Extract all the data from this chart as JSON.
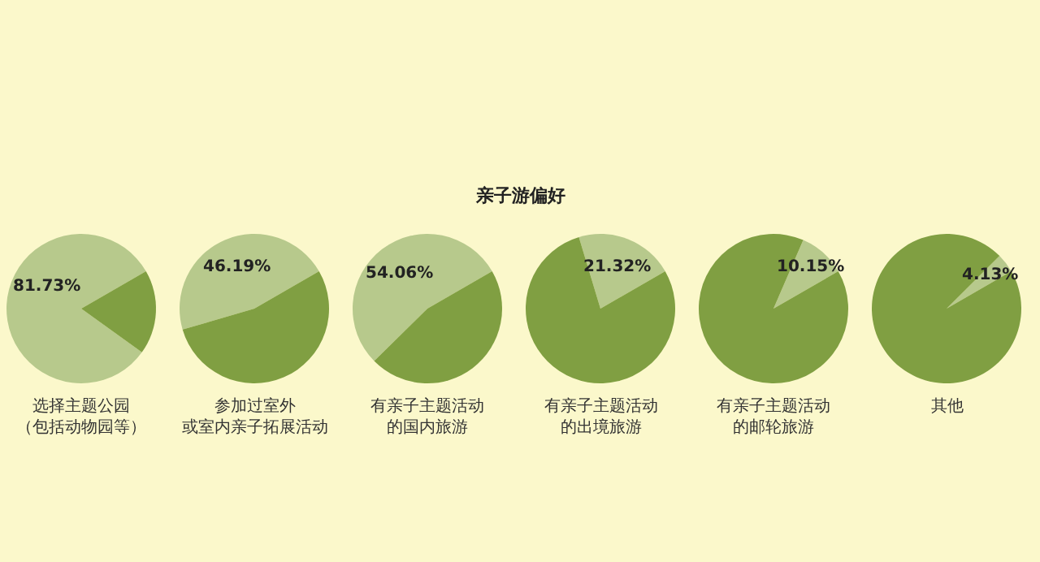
{
  "chart_data": [
    {
      "type": "pie",
      "xlabel": "选择主题公园（包括动物园等）",
      "categories": [
        null,
        null
      ],
      "values": [
        81.73,
        18.27
      ],
      "colors": [
        "#b7c98c",
        "#809f42"
      ],
      "value_labels": [
        "81.73%",
        null
      ]
    },
    {
      "type": "pie",
      "xlabel": "参加过室外或室内亲子拓展活动",
      "categories": [
        null,
        null
      ],
      "values": [
        46.19,
        53.81
      ],
      "colors": [
        "#b7c98c",
        "#809f42"
      ],
      "value_labels": [
        "46.19%",
        null
      ]
    },
    {
      "type": "pie",
      "xlabel": "有亲子主题活动的国内旅游",
      "categories": [
        null,
        null
      ],
      "values": [
        54.06,
        45.94
      ],
      "colors": [
        "#b7c98c",
        "#809f42"
      ],
      "value_labels": [
        "54.06%",
        null
      ]
    },
    {
      "type": "pie",
      "title": "亲子游偏好",
      "xlabel": "有亲子主题活动的出境旅游",
      "categories": [
        null,
        null
      ],
      "values": [
        21.32,
        78.68
      ],
      "colors": [
        "#b7c98c",
        "#809f42"
      ],
      "value_labels": [
        "21.32%",
        null
      ]
    },
    {
      "type": "pie",
      "xlabel": "有亲子主题活动的邮轮旅游",
      "categories": [
        null,
        null
      ],
      "values": [
        10.15,
        89.85
      ],
      "colors": [
        "#b7c98c",
        "#809f42"
      ],
      "value_labels": [
        "10.15%",
        null
      ]
    },
    {
      "type": "pie",
      "xlabel": "其他",
      "categories": [
        null,
        null
      ],
      "values": [
        4.13,
        95.87
      ],
      "colors": [
        "#b7c98c",
        "#809f42"
      ],
      "value_labels": [
        "4.13%",
        null
      ]
    }
  ]
}
